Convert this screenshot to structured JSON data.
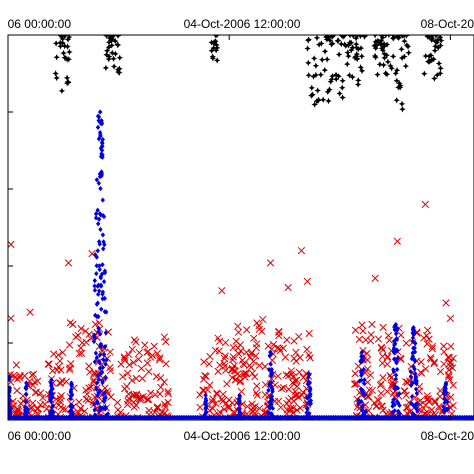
{
  "chart_data": {
    "type": "scatter",
    "title": "",
    "xlabel": "",
    "ylabel": "",
    "x_axis": {
      "ticks": [
        {
          "label": "06 00:00:00",
          "value": 0
        },
        {
          "label": "04-Oct-2006 12:00:00",
          "value": 1.5
        },
        {
          "label": "08-Oct-20",
          "value": 3
        }
      ]
    },
    "xlim": [
      0,
      3.16
    ],
    "ylim": [
      0,
      1
    ],
    "grid": false,
    "series": [
      {
        "marker": "x",
        "color": "#dd0000",
        "clusters": [
          {
            "x0": 0.0,
            "x1": 0.09,
            "ymax": 0.18
          },
          {
            "x0": 0.1,
            "x1": 0.25,
            "ymax": 0.16
          },
          {
            "x0": 0.26,
            "x1": 0.4,
            "ymax": 0.22
          },
          {
            "x0": 0.41,
            "x1": 0.7,
            "ymax": 0.32
          },
          {
            "x0": 0.74,
            "x1": 1.1,
            "ymax": 0.27
          },
          {
            "x0": 1.3,
            "x1": 1.55,
            "ymax": 0.27
          },
          {
            "x0": 1.55,
            "x1": 1.78,
            "ymax": 0.35
          },
          {
            "x0": 1.78,
            "x1": 2.05,
            "ymax": 0.3
          },
          {
            "x0": 2.35,
            "x1": 2.55,
            "ymax": 0.33
          },
          {
            "x0": 2.56,
            "x1": 2.9,
            "ymax": 0.3
          },
          {
            "x0": 2.92,
            "x1": 3.02,
            "ymax": 0.28
          }
        ],
        "outliers": [
          {
            "x": 0.02,
            "y": 0.57
          },
          {
            "x": 0.02,
            "y": 0.33
          },
          {
            "x": 0.15,
            "y": 0.35
          },
          {
            "x": 0.41,
            "y": 0.51
          },
          {
            "x": 0.57,
            "y": 0.54
          },
          {
            "x": 1.78,
            "y": 0.51
          },
          {
            "x": 1.9,
            "y": 0.43
          },
          {
            "x": 1.99,
            "y": 0.55
          },
          {
            "x": 2.03,
            "y": 0.45
          },
          {
            "x": 2.49,
            "y": 0.46
          },
          {
            "x": 2.64,
            "y": 0.58
          },
          {
            "x": 2.83,
            "y": 0.7
          },
          {
            "x": 2.97,
            "y": 0.38
          },
          {
            "x": 3.0,
            "y": 0.33
          },
          {
            "x": 1.45,
            "y": 0.42
          }
        ]
      },
      {
        "marker": "diamond",
        "color": "#0000dd",
        "baseline": 0.005,
        "spikes": [
          {
            "x0": 0.0,
            "x1": 0.02,
            "ymax": 0.14
          },
          {
            "x0": 0.11,
            "x1": 0.14,
            "ymax": 0.12
          },
          {
            "x0": 0.28,
            "x1": 0.31,
            "ymax": 0.13
          },
          {
            "x0": 0.42,
            "x1": 0.44,
            "ymax": 0.12
          },
          {
            "x0": 0.57,
            "x1": 0.68,
            "ymax": 1.0
          },
          {
            "x0": 1.33,
            "x1": 1.35,
            "ymax": 0.08
          },
          {
            "x0": 1.56,
            "x1": 1.58,
            "ymax": 0.08
          },
          {
            "x0": 1.76,
            "x1": 1.8,
            "ymax": 0.22
          },
          {
            "x0": 2.02,
            "x1": 2.06,
            "ymax": 0.15
          },
          {
            "x0": 2.37,
            "x1": 2.43,
            "ymax": 0.22
          },
          {
            "x0": 2.6,
            "x1": 2.66,
            "ymax": 0.31
          },
          {
            "x0": 2.72,
            "x1": 2.78,
            "ymax": 0.3
          },
          {
            "x0": 2.94,
            "x1": 3.0,
            "ymax": 0.12
          }
        ]
      },
      {
        "marker": "star",
        "color": "#000000",
        "segments": [
          {
            "x0": 0.32,
            "x1": 0.42,
            "ymin": 1.06,
            "ymax": 1.25
          },
          {
            "x0": 0.66,
            "x1": 0.76,
            "ymin": 1.12,
            "ymax": 1.25
          },
          {
            "x0": 1.38,
            "x1": 1.42,
            "ymin": 1.15,
            "ymax": 1.25
          },
          {
            "x0": 2.03,
            "x1": 2.28,
            "ymin": 1.02,
            "ymax": 1.25
          },
          {
            "x0": 2.28,
            "x1": 2.42,
            "ymin": 1.08,
            "ymax": 1.25
          },
          {
            "x0": 2.48,
            "x1": 2.62,
            "ymin": 1.12,
            "ymax": 1.25
          },
          {
            "x0": 2.62,
            "x1": 2.72,
            "ymin": 0.98,
            "ymax": 1.25
          },
          {
            "x0": 2.82,
            "x1": 2.94,
            "ymin": 1.1,
            "ymax": 1.25
          }
        ]
      }
    ]
  }
}
